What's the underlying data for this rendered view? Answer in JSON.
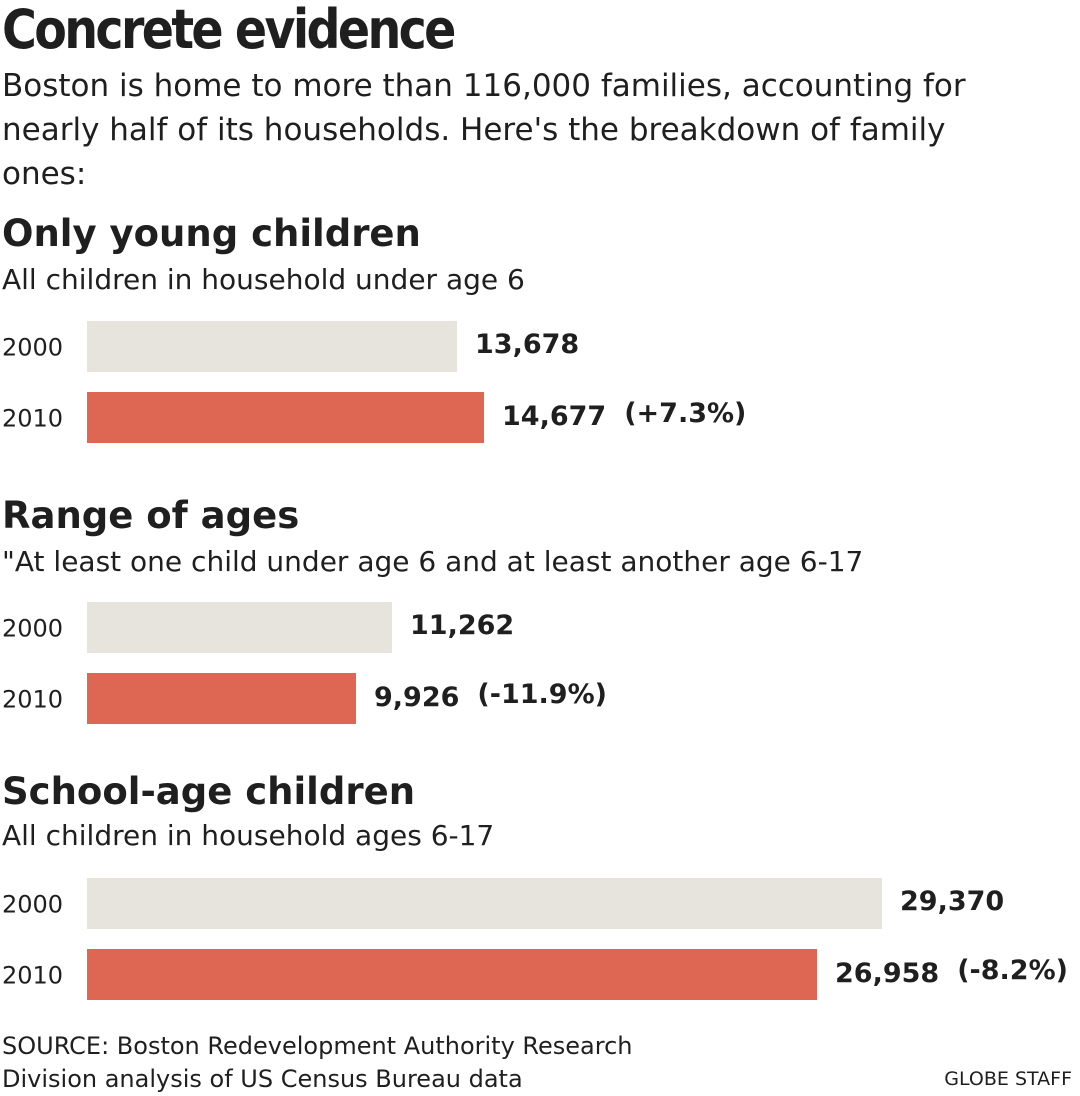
{
  "title": "Concrete evidence",
  "intro": "Boston is home to more than 116,000 families, accounting for nearly half of its households. Here's the breakdown of family ones:",
  "colors": {
    "year_2000": "#e6e4dc",
    "year_2010": "#de6753",
    "text": "#1f1f1f"
  },
  "chart_data": [
    {
      "type": "bar",
      "orientation": "horizontal",
      "title": "Only young children",
      "subtitle": "All children in household under age 6",
      "categories": [
        "2000",
        "2010"
      ],
      "values": [
        13678,
        14677
      ],
      "value_labels": [
        "13,678",
        "14,677"
      ],
      "change_labels": [
        "",
        "(+7.3%)"
      ],
      "xlim": [
        0,
        29370
      ]
    },
    {
      "type": "bar",
      "orientation": "horizontal",
      "title": "Range of ages",
      "subtitle": "\"At least one child under age 6 and at least another age 6-17",
      "categories": [
        "2000",
        "2010"
      ],
      "values": [
        11262,
        9926
      ],
      "value_labels": [
        "11,262",
        "9,926"
      ],
      "change_labels": [
        "",
        "(-11.9%)"
      ],
      "xlim": [
        0,
        29370
      ]
    },
    {
      "type": "bar",
      "orientation": "horizontal",
      "title": "School-age children",
      "subtitle": "All children in household ages 6-17",
      "categories": [
        "2000",
        "2010"
      ],
      "values": [
        29370,
        26958
      ],
      "value_labels": [
        "29,370",
        "26,958"
      ],
      "change_labels": [
        "",
        "(-8.2%)"
      ],
      "xlim": [
        0,
        29370
      ]
    }
  ],
  "footer": {
    "source_line1": "SOURCE:  Boston Redevelopment Authority Research",
    "source_line2": "Division analysis of  US Census Bureau data",
    "credit": "GLOBE STAFF"
  }
}
